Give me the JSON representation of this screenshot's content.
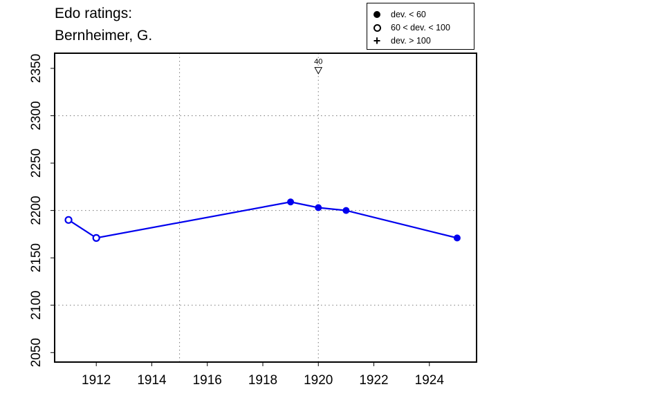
{
  "title_lines": [
    "Edo ratings:",
    "Bernheimer, G."
  ],
  "legend": {
    "placement": "top-right",
    "items": [
      {
        "symbol": "filled-circle",
        "label": "dev. < 60"
      },
      {
        "symbol": "open-circle",
        "label": "60 < dev. < 100"
      },
      {
        "symbol": "plus",
        "label": "dev. > 100"
      }
    ]
  },
  "chart_data": {
    "type": "line",
    "title": "Edo ratings: Bernheimer, G.",
    "xlabel": "",
    "ylabel": "",
    "xlim": [
      1910.5,
      1925.7
    ],
    "ylim": [
      2040,
      2366
    ],
    "x_ticks": [
      1912,
      1914,
      1916,
      1918,
      1920,
      1922,
      1924
    ],
    "y_ticks": [
      2050,
      2100,
      2150,
      2200,
      2250,
      2300,
      2350
    ],
    "grid_x": [
      1915,
      1920
    ],
    "grid_y": [
      2100,
      2200,
      2300
    ],
    "grid": true,
    "line_color": "#0000ee",
    "series": [
      {
        "values": [
          {
            "x": 1911,
            "y": 2190,
            "marker": "open-circle"
          },
          {
            "x": 1912,
            "y": 2171,
            "marker": "open-circle"
          },
          {
            "x": 1919,
            "y": 2209,
            "marker": "filled-circle"
          },
          {
            "x": 1920,
            "y": 2203,
            "marker": "filled-circle"
          },
          {
            "x": 1921,
            "y": 2200,
            "marker": "filled-circle"
          },
          {
            "x": 1925,
            "y": 2171,
            "marker": "filled-circle"
          }
        ]
      }
    ],
    "annotations": [
      {
        "x": 1920,
        "y": 2348,
        "symbol": "down-triangle",
        "label": "40"
      }
    ]
  }
}
